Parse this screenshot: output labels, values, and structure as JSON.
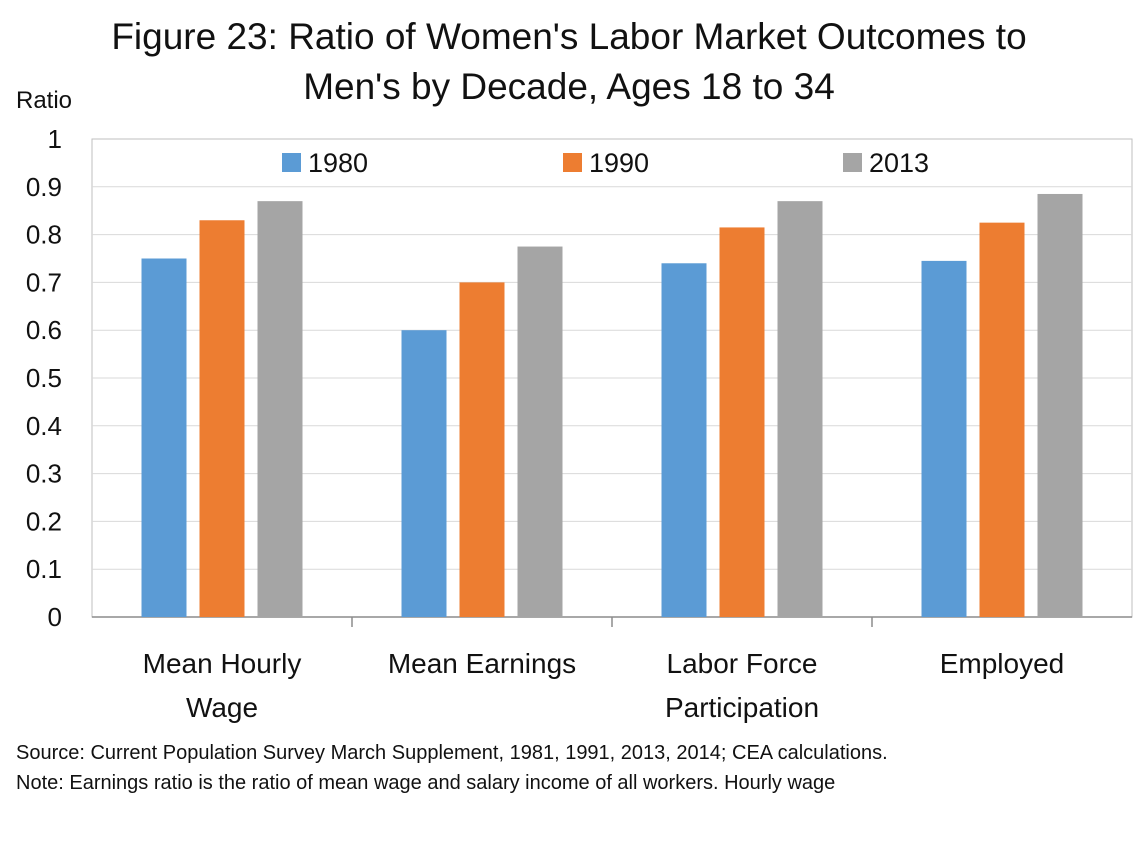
{
  "title_line1": "Figure 23: Ratio of Women's Labor Market Outcomes to",
  "title_line2": "Men's by Decade, Ages 18 to 34",
  "source": "Source: Current Population Survey March Supplement, 1981, 1991,  2013,  2014;  CEA calculations.",
  "note": "Note: Earnings ratio is the ratio of mean wage and salary income of all workers. Hourly wage",
  "chart_data": {
    "type": "bar",
    "title": "Figure 23: Ratio of Women's Labor Market Outcomes to Men's by Decade, Ages 18 to 34",
    "ylabel": "Ratio",
    "xlabel": "",
    "categories": [
      [
        "Mean Hourly",
        "Wage"
      ],
      [
        "Mean Earnings"
      ],
      [
        "Labor Force",
        "Participation"
      ],
      [
        "Employed"
      ]
    ],
    "series": [
      {
        "name": "1980",
        "color": "#5B9BD5",
        "values": [
          0.75,
          0.6,
          0.74,
          0.745
        ]
      },
      {
        "name": "1990",
        "color": "#ED7D31",
        "values": [
          0.83,
          0.7,
          0.815,
          0.825
        ]
      },
      {
        "name": "2013",
        "color": "#A5A5A5",
        "values": [
          0.87,
          0.775,
          0.87,
          0.885
        ]
      }
    ],
    "ylim": [
      0,
      1
    ],
    "yticks": [
      "0",
      "0.1",
      "0.2",
      "0.3",
      "0.4",
      "0.5",
      "0.6",
      "0.7",
      "0.8",
      "0.9",
      "1"
    ],
    "grid": true,
    "legend_position": "top-center"
  }
}
